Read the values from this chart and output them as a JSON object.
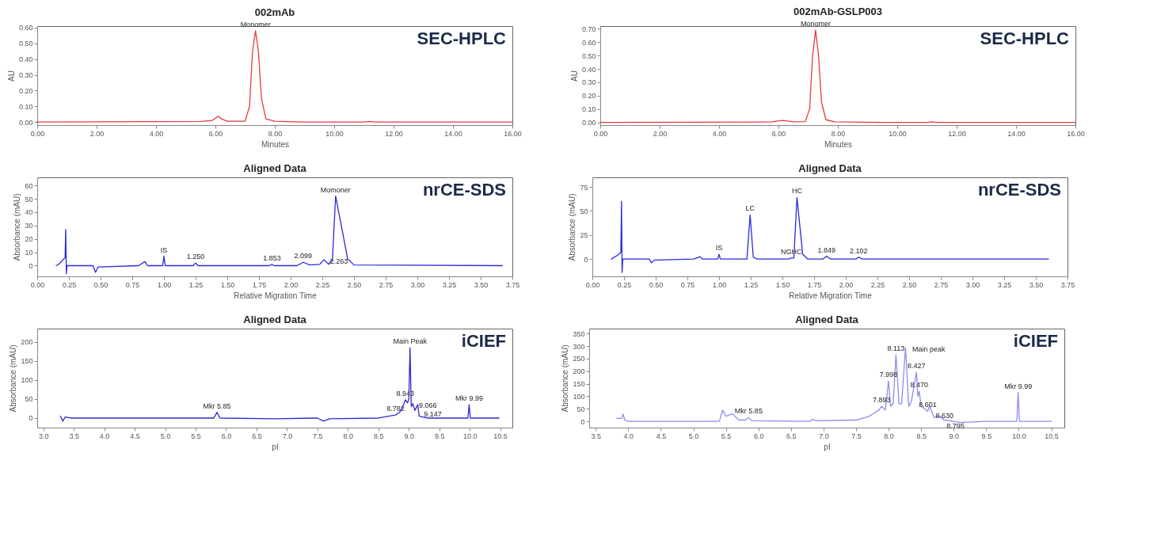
{
  "chart_data": [
    {
      "type": "line",
      "title": "002mAb",
      "xlabel": "Minutes",
      "ylabel": "AU",
      "xlim": [
        0,
        16
      ],
      "ylim": [
        -0.02,
        0.61
      ],
      "xticks": [
        {
          "value": 0,
          "label": "0.00"
        },
        {
          "value": 2,
          "label": "2.00"
        },
        {
          "value": 4,
          "label": "4.00"
        },
        {
          "value": 6,
          "label": "6.00"
        },
        {
          "value": 8,
          "label": "8.00"
        },
        {
          "value": 10,
          "label": "10.00"
        },
        {
          "value": 12,
          "label": "12.00"
        },
        {
          "value": 14,
          "label": "14.00"
        },
        {
          "value": 16,
          "label": "16.00"
        }
      ],
      "yticks": [
        {
          "value": 0,
          "label": "0.00"
        },
        {
          "value": 0.1,
          "label": "0.10"
        },
        {
          "value": 0.2,
          "label": "0.20"
        },
        {
          "value": 0.3,
          "label": "0.30"
        },
        {
          "value": 0.4,
          "label": "0.40"
        },
        {
          "value": 0.5,
          "label": "0.50"
        },
        {
          "value": 0.6,
          "label": "0.60"
        }
      ],
      "grid": false,
      "series": [
        {
          "color": "#e8383c",
          "x": [
            0,
            5.5,
            5.9,
            6.05,
            6.1,
            6.2,
            6.4,
            7.0,
            7.15,
            7.25,
            7.35,
            7.45,
            7.55,
            7.7,
            8.0,
            9,
            11,
            11.2,
            11.4,
            16
          ],
          "values": [
            0,
            0.003,
            0.01,
            0.03,
            0.035,
            0.02,
            0.005,
            0.005,
            0.1,
            0.45,
            0.58,
            0.45,
            0.15,
            0.02,
            0.005,
            0,
            0,
            0.003,
            0,
            0
          ]
        }
      ],
      "annotations": [
        "SEC-HPLC",
        {
          "text": "Monomer",
          "x": 7.35,
          "y": 0.58
        }
      ]
    },
    {
      "type": "line",
      "title": "002mAb-GSLP003",
      "xlabel": "Minutes",
      "ylabel": "AU",
      "xlim": [
        0,
        16
      ],
      "ylim": [
        -0.02,
        0.72
      ],
      "xticks": [
        {
          "value": 0,
          "label": "0.00"
        },
        {
          "value": 2,
          "label": "2.00"
        },
        {
          "value": 4,
          "label": "4.00"
        },
        {
          "value": 6,
          "label": "6.00"
        },
        {
          "value": 8,
          "label": "8.00"
        },
        {
          "value": 10,
          "label": "10.00"
        },
        {
          "value": 12,
          "label": "12.00"
        },
        {
          "value": 14,
          "label": "14.00"
        },
        {
          "value": 16,
          "label": "16.00"
        }
      ],
      "yticks": [
        {
          "value": 0,
          "label": "0.00"
        },
        {
          "value": 0.1,
          "label": "0.10"
        },
        {
          "value": 0.2,
          "label": "0.20"
        },
        {
          "value": 0.3,
          "label": "0.30"
        },
        {
          "value": 0.4,
          "label": "0.40"
        },
        {
          "value": 0.5,
          "label": "0.50"
        },
        {
          "value": 0.6,
          "label": "0.60"
        },
        {
          "value": 0.7,
          "label": "0.70"
        }
      ],
      "grid": false,
      "series": [
        {
          "color": "#e8383c",
          "x": [
            0,
            5.4,
            5.8,
            6.0,
            6.15,
            6.3,
            6.5,
            6.9,
            7.05,
            7.15,
            7.25,
            7.35,
            7.45,
            7.6,
            7.9,
            9.5,
            11.0,
            11.15,
            11.3,
            16
          ],
          "values": [
            0,
            0.003,
            0.005,
            0.012,
            0.015,
            0.01,
            0.004,
            0.006,
            0.1,
            0.5,
            0.69,
            0.5,
            0.15,
            0.02,
            0.005,
            0,
            0,
            0.005,
            0,
            0
          ]
        }
      ],
      "annotations": [
        "SEC-HPLC",
        {
          "text": "Monomer",
          "x": 7.25,
          "y": 0.69
        }
      ]
    },
    {
      "type": "line",
      "title": "Aligned Data",
      "xlabel": "Relative Migration Time",
      "ylabel": "Absorbance (mAU)",
      "xlim": [
        0,
        3.75
      ],
      "ylim": [
        -8,
        66
      ],
      "xticks": [
        {
          "value": 0,
          "label": "0.00"
        },
        {
          "value": 0.25,
          "label": "0.25"
        },
        {
          "value": 0.5,
          "label": "0.50"
        },
        {
          "value": 0.75,
          "label": "0.75"
        },
        {
          "value": 1,
          "label": "1.00"
        },
        {
          "value": 1.25,
          "label": "1.25"
        },
        {
          "value": 1.5,
          "label": "1.50"
        },
        {
          "value": 1.75,
          "label": "1.75"
        },
        {
          "value": 2,
          "label": "2.00"
        },
        {
          "value": 2.25,
          "label": "2.25"
        },
        {
          "value": 2.5,
          "label": "2.50"
        },
        {
          "value": 2.75,
          "label": "2.75"
        },
        {
          "value": 3,
          "label": "3.00"
        },
        {
          "value": 3.25,
          "label": "3.25"
        },
        {
          "value": 3.5,
          "label": "3.50"
        },
        {
          "value": 3.75,
          "label": "3.75"
        }
      ],
      "yticks": [
        0,
        10,
        20,
        30,
        40,
        50,
        60
      ],
      "grid": false,
      "series": [
        {
          "color": "#2a2adc",
          "x": [
            0.15,
            0.17,
            0.22,
            0.225,
            0.23,
            0.235,
            0.44,
            0.46,
            0.48,
            0.5,
            0.8,
            0.85,
            0.87,
            0.99,
            1.0,
            1.01,
            1.23,
            1.25,
            1.27,
            1.83,
            1.853,
            1.87,
            2.05,
            2.1,
            2.15,
            2.23,
            2.263,
            2.3,
            2.33,
            2.355,
            2.4,
            2.45,
            2.5,
            3.67
          ],
          "values": [
            0,
            1,
            6,
            27,
            -6,
            0,
            0,
            -5,
            -1,
            -1,
            0,
            3,
            0,
            0,
            7,
            0,
            0,
            2,
            0,
            0,
            1,
            0,
            0,
            2.5,
            0.5,
            1,
            4.5,
            1,
            5,
            52,
            30,
            5,
            0.5,
            0
          ]
        }
      ],
      "annotations": [
        "nrCE-SDS",
        {
          "text": "IS",
          "x": 1.0,
          "y": 7
        },
        {
          "text": "1.250",
          "x": 1.25,
          "y": 2
        },
        {
          "text": "1.853",
          "x": 1.853,
          "y": 1
        },
        {
          "text": "2.099",
          "x": 2.099,
          "y": 2.5
        },
        {
          "text": "2.263",
          "x": 2.263,
          "y": 4.5
        },
        {
          "text": "Momoner",
          "x": 2.355,
          "y": 52
        }
      ]
    },
    {
      "type": "line",
      "title": "Aligned Data",
      "xlabel": "Relative Migration Time",
      "ylabel": "Absorbance (mAU)",
      "xlim": [
        0,
        3.75
      ],
      "ylim": [
        -18,
        85
      ],
      "xticks": [
        {
          "value": 0,
          "label": "0.00"
        },
        {
          "value": 0.25,
          "label": "0.25"
        },
        {
          "value": 0.5,
          "label": "0.50"
        },
        {
          "value": 0.75,
          "label": "0.75"
        },
        {
          "value": 1,
          "label": "1.00"
        },
        {
          "value": 1.25,
          "label": "1.25"
        },
        {
          "value": 1.5,
          "label": "1.50"
        },
        {
          "value": 1.75,
          "label": "1.75"
        },
        {
          "value": 2,
          "label": "2.00"
        },
        {
          "value": 2.25,
          "label": "2.25"
        },
        {
          "value": 2.5,
          "label": "2.50"
        },
        {
          "value": 2.75,
          "label": "2.75"
        },
        {
          "value": 3,
          "label": "3.00"
        },
        {
          "value": 3.25,
          "label": "3.25"
        },
        {
          "value": 3.5,
          "label": "3.50"
        },
        {
          "value": 3.75,
          "label": "3.75"
        }
      ],
      "yticks": [
        0,
        25,
        50,
        75
      ],
      "grid": false,
      "series": [
        {
          "color": "#2a2adc",
          "x": [
            0.15,
            0.2,
            0.225,
            0.23,
            0.235,
            0.24,
            0.45,
            0.465,
            0.49,
            0.52,
            0.8,
            0.85,
            0.87,
            0.99,
            1.0,
            1.01,
            1.22,
            1.245,
            1.27,
            1.3,
            1.55,
            1.57,
            1.59,
            1.615,
            1.66,
            1.7,
            1.82,
            1.849,
            1.88,
            2.08,
            2.102,
            2.13,
            3.6
          ],
          "values": [
            0,
            4,
            7,
            60,
            -14,
            0,
            0,
            -4,
            -1,
            -1,
            0,
            2.5,
            0,
            0,
            5,
            0,
            0,
            46,
            2,
            0,
            0,
            1,
            1,
            64,
            5,
            0,
            0,
            3,
            0,
            0,
            2,
            0,
            0
          ]
        }
      ],
      "annotations": [
        "nrCE-SDS",
        {
          "text": "IS",
          "x": 1.0,
          "y": 5
        },
        {
          "text": "LC",
          "x": 1.245,
          "y": 46
        },
        {
          "text": "NGHC",
          "x": 1.57,
          "y": 1
        },
        {
          "text": "HC",
          "x": 1.615,
          "y": 64
        },
        {
          "text": "1.849",
          "x": 1.849,
          "y": 3
        },
        {
          "text": "2.102",
          "x": 2.102,
          "y": 2
        }
      ]
    },
    {
      "type": "line",
      "title": "Aligned Data",
      "xlabel": "pI",
      "ylabel": "Absorbance (mAU)",
      "xlim": [
        2.9,
        10.7
      ],
      "ylim": [
        -25,
        235
      ],
      "xticks": [
        {
          "value": 3,
          "label": "3.0"
        },
        {
          "value": 3.5,
          "label": "3.5"
        },
        {
          "value": 4,
          "label": "4.0"
        },
        {
          "value": 4.5,
          "label": "4.5"
        },
        {
          "value": 5,
          "label": "5.0"
        },
        {
          "value": 5.5,
          "label": "5.5"
        },
        {
          "value": 6,
          "label": "6.0"
        },
        {
          "value": 6.5,
          "label": "6.5"
        },
        {
          "value": 7,
          "label": "7.0"
        },
        {
          "value": 7.5,
          "label": "7.5"
        },
        {
          "value": 8,
          "label": "8.0"
        },
        {
          "value": 8.5,
          "label": "8.5"
        },
        {
          "value": 9,
          "label": "9.0"
        },
        {
          "value": 9.5,
          "label": "9.5"
        },
        {
          "value": 10,
          "label": "10.0"
        },
        {
          "value": 10.5,
          "label": "10.5"
        }
      ],
      "yticks": [
        0,
        50,
        100,
        150,
        200
      ],
      "grid": false,
      "series": [
        {
          "color": "#2a2ad0",
          "x": [
            3.28,
            3.32,
            3.36,
            3.45,
            5.8,
            5.85,
            5.9,
            6.8,
            7.5,
            7.6,
            7.7,
            8.5,
            8.782,
            8.85,
            8.9,
            8.943,
            8.98,
            9.0,
            9.02,
            9.04,
            9.066,
            9.1,
            9.147,
            9.17,
            9.3,
            9.97,
            9.99,
            10.01,
            10.48
          ],
          "values": [
            5,
            -8,
            3,
            0,
            0,
            15,
            0,
            -2,
            0,
            -8,
            -2,
            0,
            8,
            15,
            30,
            48,
            40,
            50,
            185,
            30,
            38,
            20,
            35,
            5,
            0,
            0,
            35,
            0,
            0
          ]
        }
      ],
      "annotations": [
        "iCIEF",
        {
          "text": "Mkr 5.85",
          "x": 5.85,
          "y": 15
        },
        {
          "text": "8.782",
          "x": 8.782,
          "y": 8
        },
        {
          "text": "8.943",
          "x": 8.943,
          "y": 48
        },
        {
          "text": "Main Peak",
          "x": 9.02,
          "y": 185
        },
        {
          "text": "9.066",
          "x": 9.066,
          "y": 38
        },
        {
          "text": "9.147",
          "x": 9.147,
          "y": 35
        },
        {
          "text": "Mkr 9.99",
          "x": 9.99,
          "y": 35
        }
      ]
    },
    {
      "type": "line",
      "title": "Aligned Data",
      "xlabel": "pI",
      "ylabel": "Absorbance (mAU)",
      "xlim": [
        3.4,
        10.7
      ],
      "ylim": [
        -25,
        370
      ],
      "xticks": [
        {
          "value": 3.5,
          "label": "3.5"
        },
        {
          "value": 4,
          "label": "4.0"
        },
        {
          "value": 4.5,
          "label": "4.5"
        },
        {
          "value": 5,
          "label": "5.0"
        },
        {
          "value": 5.5,
          "label": "5.5"
        },
        {
          "value": 6,
          "label": "6.0"
        },
        {
          "value": 6.5,
          "label": "6.5"
        },
        {
          "value": 7,
          "label": "7.0"
        },
        {
          "value": 7.5,
          "label": "7.5"
        },
        {
          "value": 8,
          "label": "8.0"
        },
        {
          "value": 8.5,
          "label": "8.5"
        },
        {
          "value": 9,
          "label": "9.0"
        },
        {
          "value": 9.5,
          "label": "9.5"
        },
        {
          "value": 10,
          "label": "10.0"
        },
        {
          "value": 10.5,
          "label": "10.5"
        }
      ],
      "yticks": [
        0,
        50,
        100,
        150,
        200,
        250,
        300,
        350
      ],
      "grid": false,
      "series": [
        {
          "color": "#8c8cf0",
          "x": [
            3.82,
            3.9,
            3.92,
            3.95,
            4.0,
            5.4,
            5.45,
            5.5,
            5.55,
            5.6,
            5.7,
            5.8,
            5.85,
            5.9,
            6.8,
            6.82,
            6.9,
            7.5,
            7.7,
            7.85,
            7.893,
            7.95,
            7.998,
            8.03,
            8.07,
            8.113,
            8.16,
            8.2,
            8.26,
            8.31,
            8.35,
            8.427,
            8.45,
            8.47,
            8.5,
            8.601,
            8.63,
            8.66,
            8.7,
            8.795,
            8.85,
            9.0,
            9.1,
            9.5,
            9.97,
            9.99,
            10.01,
            10.5
          ],
          "values": [
            12,
            12,
            28,
            5,
            0,
            0,
            45,
            20,
            25,
            30,
            5,
            5,
            15,
            2,
            0,
            8,
            2,
            5,
            20,
            45,
            60,
            45,
            160,
            60,
            70,
            265,
            70,
            70,
            295,
            60,
            80,
            195,
            100,
            120,
            60,
            40,
            60,
            40,
            15,
            20,
            5,
            0,
            -5,
            0,
            0,
            115,
            0,
            0
          ]
        }
      ],
      "annotations": [
        "iCIEF",
        {
          "text": "Mkr 5.85",
          "x": 5.85,
          "y": 15
        },
        {
          "text": "7.893",
          "x": 7.893,
          "y": 60
        },
        {
          "text": "7.998",
          "x": 7.998,
          "y": 160
        },
        {
          "text": "8.113",
          "x": 8.113,
          "y": 265
        },
        {
          "text": "Main peak",
          "x": 8.26,
          "y": 295
        },
        {
          "text": "8.427",
          "x": 8.427,
          "y": 195
        },
        {
          "text": "8.470",
          "x": 8.47,
          "y": 120
        },
        {
          "text": "8.601",
          "x": 8.601,
          "y": 40
        },
        {
          "text": "8.630",
          "x": 8.63,
          "y": 60
        },
        {
          "text": "8.795",
          "x": 8.795,
          "y": 20
        },
        {
          "text": "Mkr 9.99",
          "x": 9.99,
          "y": 115
        }
      ]
    }
  ]
}
